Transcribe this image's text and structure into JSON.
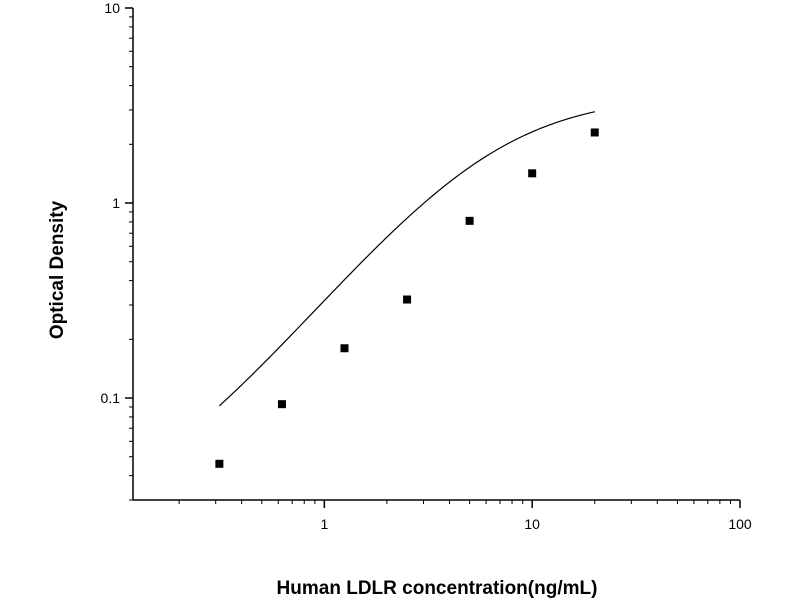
{
  "chart_data": {
    "type": "scatter",
    "title": "",
    "xlabel": "Human LDLR concentration(ng/mL)",
    "ylabel": "Optical Density",
    "x_scale": "log",
    "y_scale": "log",
    "xlim": [
      0.12,
      100
    ],
    "ylim": [
      0.03,
      10
    ],
    "x_ticks": [
      1,
      10,
      100
    ],
    "x_tick_labels": [
      "1",
      "10",
      "100"
    ],
    "y_ticks": [
      0.1,
      1,
      10
    ],
    "y_tick_labels": [
      "0.1",
      "1",
      "10"
    ],
    "grid": false,
    "legend": "none",
    "series": [
      {
        "marker": "square",
        "x": [
          0.3125,
          0.625,
          1.25,
          2.5,
          5,
          10,
          20
        ],
        "y": [
          0.046,
          0.093,
          0.18,
          0.32,
          0.81,
          1.42,
          2.3
        ]
      }
    ],
    "fit": {
      "type": "four-parameter logistic",
      "bottom": 0.022,
      "top": 3.6,
      "ec50": 6.4,
      "hill": 1.3
    },
    "colors": {
      "axis": "#000000",
      "marker": "#000000",
      "curve": "#000000"
    }
  }
}
